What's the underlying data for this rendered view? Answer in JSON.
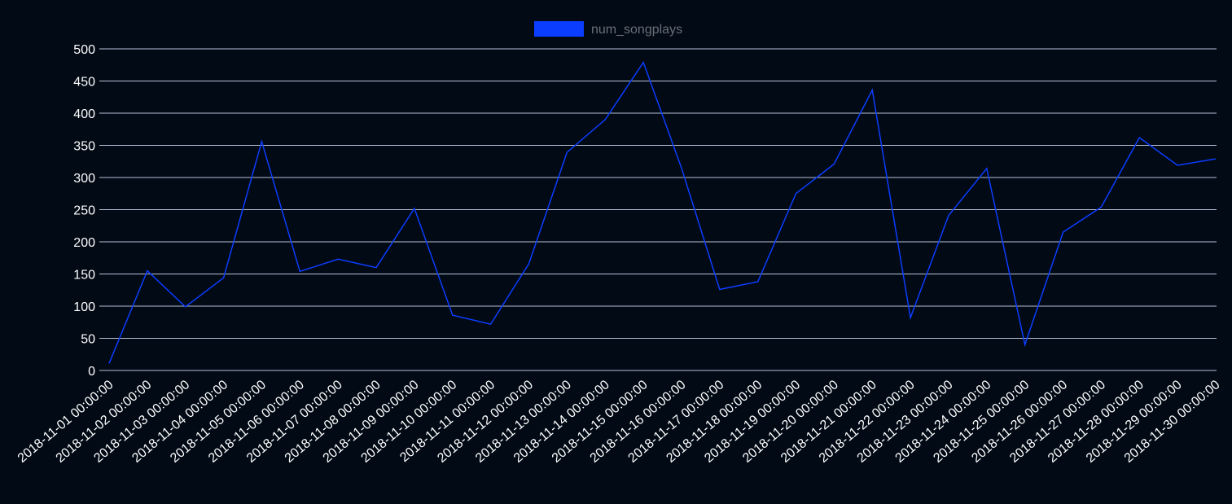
{
  "colors": {
    "background": "#010a15",
    "series": "#0b3dff",
    "grid": "#b8c2d6",
    "tick_text": "#ffffff",
    "legend_text": "#6b6f78"
  },
  "chart_data": {
    "type": "line",
    "title": "",
    "xlabel": "",
    "ylabel": "",
    "ylim": [
      0,
      500
    ],
    "yticks": [
      0,
      50,
      100,
      150,
      200,
      250,
      300,
      350,
      400,
      450,
      500
    ],
    "grid": true,
    "legend_position": "top-center",
    "x": [
      "2018-11-01 00:00:00",
      "2018-11-02 00:00:00",
      "2018-11-03 00:00:00",
      "2018-11-04 00:00:00",
      "2018-11-05 00:00:00",
      "2018-11-06 00:00:00",
      "2018-11-07 00:00:00",
      "2018-11-08 00:00:00",
      "2018-11-09 00:00:00",
      "2018-11-10 00:00:00",
      "2018-11-11 00:00:00",
      "2018-11-12 00:00:00",
      "2018-11-13 00:00:00",
      "2018-11-14 00:00:00",
      "2018-11-15 00:00:00",
      "2018-11-16 00:00:00",
      "2018-11-17 00:00:00",
      "2018-11-18 00:00:00",
      "2018-11-19 00:00:00",
      "2018-11-20 00:00:00",
      "2018-11-21 00:00:00",
      "2018-11-22 00:00:00",
      "2018-11-23 00:00:00",
      "2018-11-24 00:00:00",
      "2018-11-25 00:00:00",
      "2018-11-26 00:00:00",
      "2018-11-27 00:00:00",
      "2018-11-28 00:00:00",
      "2018-11-29 00:00:00",
      "2018-11-30 00:00:00"
    ],
    "series": [
      {
        "name": "num_songplays",
        "values": [
          11,
          155,
          99,
          144,
          356,
          154,
          173,
          160,
          252,
          86,
          72,
          166,
          339,
          390,
          479,
          315,
          126,
          138,
          275,
          321,
          436,
          82,
          241,
          314,
          40,
          215,
          254,
          362,
          319,
          329
        ]
      }
    ]
  }
}
